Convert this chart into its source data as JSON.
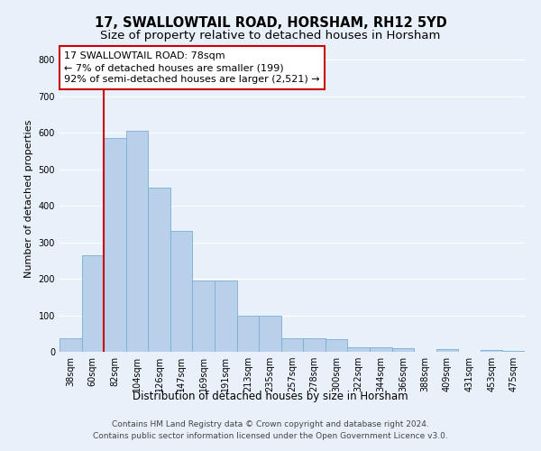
{
  "title": "17, SWALLOWTAIL ROAD, HORSHAM, RH12 5YD",
  "subtitle": "Size of property relative to detached houses in Horsham",
  "xlabel": "Distribution of detached houses by size in Horsham",
  "ylabel": "Number of detached properties",
  "categories": [
    "38sqm",
    "60sqm",
    "82sqm",
    "104sqm",
    "126sqm",
    "147sqm",
    "169sqm",
    "191sqm",
    "213sqm",
    "235sqm",
    "257sqm",
    "278sqm",
    "300sqm",
    "322sqm",
    "344sqm",
    "366sqm",
    "388sqm",
    "409sqm",
    "431sqm",
    "453sqm",
    "475sqm"
  ],
  "values": [
    38,
    265,
    585,
    605,
    450,
    330,
    195,
    195,
    100,
    100,
    38,
    38,
    35,
    13,
    13,
    10,
    0,
    8,
    0,
    5,
    3
  ],
  "bar_color": "#b8d0ea",
  "bar_edge_color": "#7aafd4",
  "property_line_x": 1.5,
  "property_line_color": "#cc0000",
  "annotation_line1": "17 SWALLOWTAIL ROAD: 78sqm",
  "annotation_line2": "← 7% of detached houses are smaller (199)",
  "annotation_line3": "92% of semi-detached houses are larger (2,521) →",
  "annotation_box_edgecolor": "#cc0000",
  "ylim_max": 840,
  "yticks": [
    0,
    100,
    200,
    300,
    400,
    500,
    600,
    700,
    800
  ],
  "footer1": "Contains HM Land Registry data © Crown copyright and database right 2024.",
  "footer2": "Contains public sector information licensed under the Open Government Licence v3.0.",
  "bg_color": "#e8f0fa",
  "grid_color": "#ffffff",
  "title_fontsize": 10.5,
  "subtitle_fontsize": 9.5,
  "tick_fontsize": 7,
  "ylabel_fontsize": 8,
  "xlabel_fontsize": 8.5,
  "annotation_fontsize": 8,
  "footer_fontsize": 6.5
}
